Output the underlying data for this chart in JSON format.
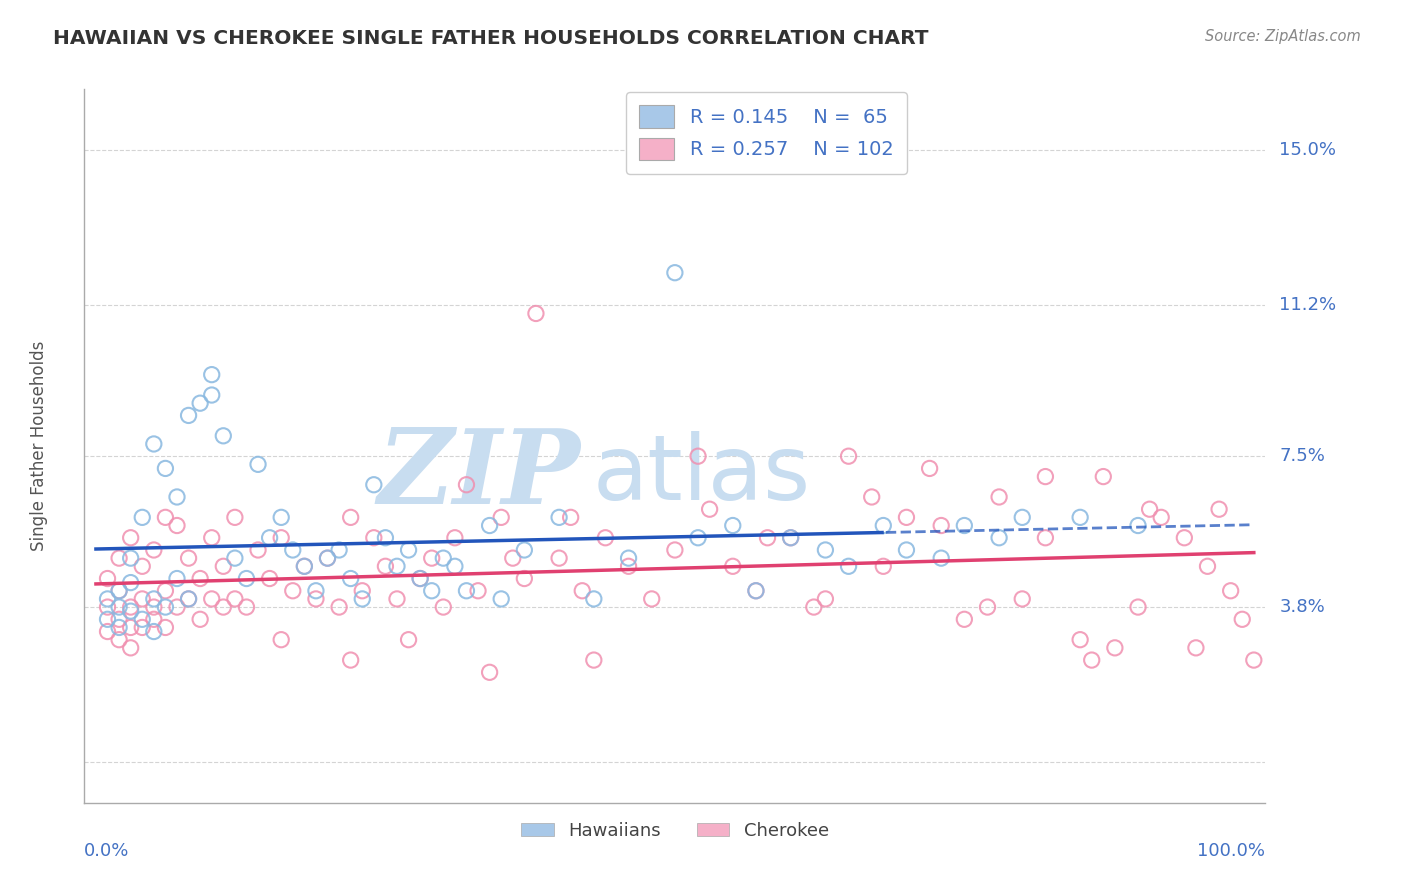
{
  "title": "HAWAIIAN VS CHEROKEE SINGLE FATHER HOUSEHOLDS CORRELATION CHART",
  "source": "Source: ZipAtlas.com",
  "ylabel": "Single Father Households",
  "ytick_values": [
    0.0,
    0.038,
    0.075,
    0.112,
    0.15
  ],
  "ytick_labels": [
    "",
    "3.8%",
    "7.5%",
    "11.2%",
    "15.0%"
  ],
  "xlim": [
    -0.01,
    1.01
  ],
  "ylim": [
    -0.01,
    0.165
  ],
  "legend_label1": "R = 0.145    N =  65",
  "legend_label2": "R = 0.257    N = 102",
  "legend_color1": "#a8c8e8",
  "legend_color2": "#f5b0c8",
  "hawaiian_color": "#88b8e0",
  "cherokee_color": "#f090b0",
  "hawaiian_line_color": "#2255bb",
  "cherokee_line_color": "#e04070",
  "watermark_color": "#c8ddf0",
  "background_color": "#ffffff",
  "grid_color": "#d0d0d0",
  "title_color": "#333333",
  "axis_label_color": "#4472c4",
  "source_color": "#888888",
  "hawaiian_x": [
    0.01,
    0.01,
    0.02,
    0.02,
    0.02,
    0.03,
    0.03,
    0.03,
    0.04,
    0.04,
    0.05,
    0.05,
    0.05,
    0.06,
    0.06,
    0.07,
    0.07,
    0.08,
    0.08,
    0.09,
    0.1,
    0.1,
    0.11,
    0.12,
    0.13,
    0.14,
    0.15,
    0.16,
    0.17,
    0.18,
    0.19,
    0.2,
    0.21,
    0.22,
    0.23,
    0.24,
    0.25,
    0.26,
    0.27,
    0.28,
    0.29,
    0.3,
    0.31,
    0.32,
    0.34,
    0.35,
    0.37,
    0.4,
    0.43,
    0.46,
    0.5,
    0.52,
    0.55,
    0.57,
    0.6,
    0.63,
    0.65,
    0.68,
    0.7,
    0.73,
    0.75,
    0.78,
    0.8,
    0.85,
    0.9
  ],
  "hawaiian_y": [
    0.04,
    0.035,
    0.038,
    0.042,
    0.033,
    0.05,
    0.037,
    0.044,
    0.06,
    0.035,
    0.04,
    0.078,
    0.032,
    0.072,
    0.038,
    0.065,
    0.045,
    0.085,
    0.04,
    0.088,
    0.09,
    0.095,
    0.08,
    0.05,
    0.045,
    0.073,
    0.055,
    0.06,
    0.052,
    0.048,
    0.042,
    0.05,
    0.052,
    0.045,
    0.04,
    0.068,
    0.055,
    0.048,
    0.052,
    0.045,
    0.042,
    0.05,
    0.048,
    0.042,
    0.058,
    0.04,
    0.052,
    0.06,
    0.04,
    0.05,
    0.12,
    0.055,
    0.058,
    0.042,
    0.055,
    0.052,
    0.048,
    0.058,
    0.052,
    0.05,
    0.058,
    0.055,
    0.06,
    0.06,
    0.058
  ],
  "cherokee_x": [
    0.01,
    0.01,
    0.01,
    0.02,
    0.02,
    0.02,
    0.02,
    0.03,
    0.03,
    0.03,
    0.03,
    0.04,
    0.04,
    0.04,
    0.05,
    0.05,
    0.05,
    0.06,
    0.06,
    0.06,
    0.07,
    0.07,
    0.08,
    0.08,
    0.09,
    0.09,
    0.1,
    0.1,
    0.11,
    0.11,
    0.12,
    0.12,
    0.13,
    0.14,
    0.15,
    0.16,
    0.17,
    0.18,
    0.19,
    0.2,
    0.21,
    0.22,
    0.23,
    0.24,
    0.25,
    0.26,
    0.28,
    0.29,
    0.3,
    0.31,
    0.33,
    0.35,
    0.37,
    0.38,
    0.4,
    0.42,
    0.44,
    0.46,
    0.48,
    0.5,
    0.52,
    0.55,
    0.57,
    0.6,
    0.62,
    0.65,
    0.68,
    0.7,
    0.72,
    0.75,
    0.78,
    0.8,
    0.82,
    0.85,
    0.87,
    0.9,
    0.92,
    0.95,
    0.97,
    1.0,
    0.27,
    0.32,
    0.36,
    0.41,
    0.53,
    0.58,
    0.63,
    0.67,
    0.73,
    0.77,
    0.82,
    0.86,
    0.88,
    0.91,
    0.94,
    0.96,
    0.98,
    0.99,
    0.16,
    0.22,
    0.34,
    0.43
  ],
  "cherokee_y": [
    0.038,
    0.032,
    0.045,
    0.035,
    0.042,
    0.03,
    0.05,
    0.038,
    0.033,
    0.055,
    0.028,
    0.04,
    0.048,
    0.033,
    0.035,
    0.052,
    0.038,
    0.042,
    0.06,
    0.033,
    0.038,
    0.058,
    0.04,
    0.05,
    0.035,
    0.045,
    0.04,
    0.055,
    0.038,
    0.048,
    0.04,
    0.06,
    0.038,
    0.052,
    0.045,
    0.055,
    0.042,
    0.048,
    0.04,
    0.05,
    0.038,
    0.06,
    0.042,
    0.055,
    0.048,
    0.04,
    0.045,
    0.05,
    0.038,
    0.055,
    0.042,
    0.06,
    0.045,
    0.11,
    0.05,
    0.042,
    0.055,
    0.048,
    0.04,
    0.052,
    0.075,
    0.048,
    0.042,
    0.055,
    0.038,
    0.075,
    0.048,
    0.06,
    0.072,
    0.035,
    0.065,
    0.04,
    0.055,
    0.03,
    0.07,
    0.038,
    0.06,
    0.028,
    0.062,
    0.025,
    0.03,
    0.068,
    0.05,
    0.06,
    0.062,
    0.055,
    0.04,
    0.065,
    0.058,
    0.038,
    0.07,
    0.025,
    0.028,
    0.062,
    0.055,
    0.048,
    0.042,
    0.035,
    0.03,
    0.025,
    0.022,
    0.025
  ]
}
